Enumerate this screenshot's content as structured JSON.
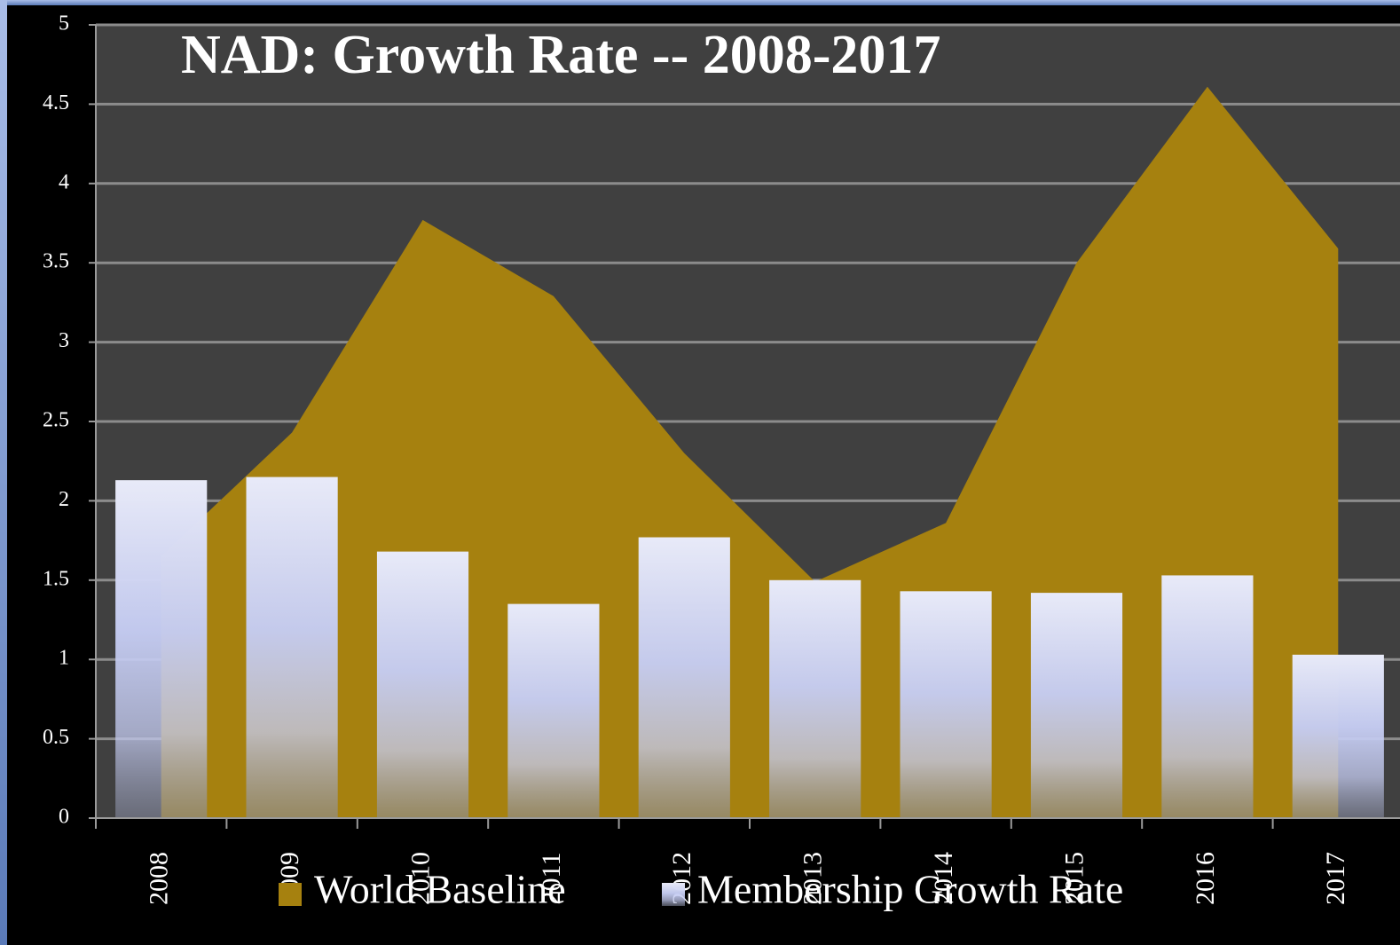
{
  "chart_data": {
    "type": "bar-area",
    "title": "NAD:  Growth Rate -- 2008-2017",
    "categories": [
      "2008",
      "2009",
      "2010",
      "2011",
      "2012",
      "2013",
      "2014",
      "2015",
      "2016",
      "2017"
    ],
    "series": [
      {
        "name": "World Baseline",
        "type": "area",
        "color": "#a6810f",
        "values": [
          1.65,
          2.43,
          3.77,
          3.29,
          2.3,
          1.49,
          1.86,
          3.5,
          4.61,
          3.59
        ]
      },
      {
        "name": "Membership Growth Rate",
        "type": "bar",
        "color": "#c5ccf2",
        "values": [
          2.13,
          2.15,
          1.68,
          1.35,
          1.77,
          1.5,
          1.43,
          1.42,
          1.53,
          1.03
        ]
      }
    ],
    "ylim": [
      0,
      5
    ],
    "yticks": [
      0,
      {
        "value": 0.5,
        "label": "0.5"
      },
      1,
      {
        "value": 1.5,
        "label": "1.5"
      },
      2,
      {
        "value": 2.5,
        "label": "2.5"
      },
      3,
      {
        "value": 3.5,
        "label": "3.5"
      },
      4,
      {
        "value": 4.5,
        "label": "4.5"
      },
      5
    ],
    "grid": true
  }
}
